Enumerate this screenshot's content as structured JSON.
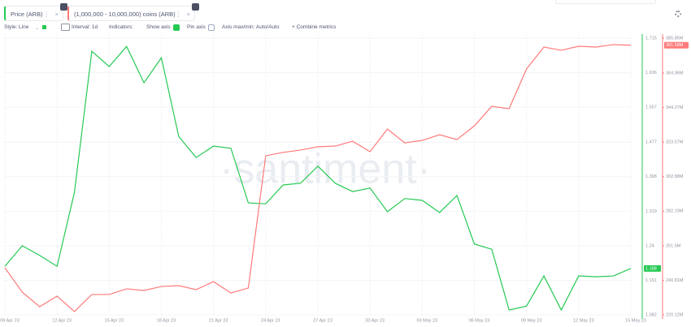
{
  "ui": {
    "toolbar": {
      "style": "Style: Line",
      "interval": "Interval: 1d",
      "indicators": "Indicators:",
      "show_axis": "Show axis",
      "pin_axis": "Pin axis",
      "axis_minmax": "Axis max/min: Auto/Auto",
      "combine": "Combine metrics"
    },
    "watermark": "·santiment·"
  },
  "chart_data": {
    "type": "line",
    "categories": [
      "09 Apr 23",
      null,
      null,
      "12 Apr 23",
      null,
      null,
      "15 Apr 23",
      null,
      null,
      "18 Apr 23",
      null,
      null,
      "21 Apr 23",
      null,
      null,
      "24 Apr 23",
      null,
      null,
      "27 Apr 23",
      null,
      null,
      "30 Apr 23",
      null,
      null,
      "03 May 23",
      null,
      null,
      "06 May 23",
      null,
      null,
      "09 May 23",
      null,
      null,
      "12 May 23",
      null,
      null,
      "15 May 23"
    ],
    "series": [
      {
        "name": "Price (ARB)",
        "color": "#26c953",
        "axis": "y",
        "values": [
          1.193,
          1.24,
          1.218,
          1.193,
          1.362,
          1.685,
          1.65,
          1.696,
          1.613,
          1.67,
          1.49,
          1.442,
          1.468,
          1.463,
          1.338,
          1.336,
          1.379,
          1.383,
          1.422,
          1.383,
          1.364,
          1.372,
          1.318,
          1.348,
          1.344,
          1.316,
          1.355,
          1.244,
          1.232,
          1.093,
          1.102,
          1.171,
          1.093,
          1.171,
          1.169,
          1.171,
          1.188
        ]
      },
      {
        "name": "(1,000,000 - 10,000,000) coins (ARB)",
        "color": "#ff7a7a",
        "axis": "y2",
        "values": [
          248300000,
          233700000,
          225000000,
          231300000,
          222100000,
          232300000,
          232300000,
          235700000,
          234700000,
          237100000,
          237600000,
          235200000,
          240000000,
          233200000,
          236200000,
          315400000,
          317400000,
          318800000,
          320800000,
          321200000,
          324100000,
          317800000,
          331400000,
          323100000,
          324600000,
          328000000,
          325100000,
          333300000,
          345000000,
          343600000,
          367400000,
          380500000,
          378600000,
          381000000,
          380500000,
          382000000,
          381580000
        ],
        "value_labels": [
          null,
          null,
          null,
          null,
          null,
          null,
          null,
          null,
          null,
          null,
          null,
          null,
          null,
          null,
          null,
          null,
          null,
          null,
          null,
          null,
          null,
          null,
          null,
          null,
          null,
          null,
          null,
          null,
          null,
          null,
          null,
          null,
          null,
          null,
          null,
          null,
          "381.58M"
        ]
      }
    ],
    "ylim": [
      1.082,
      1.715
    ],
    "yticks": [
      1.082,
      1.161,
      1.24,
      1.319,
      1.398,
      1.477,
      1.557,
      1.636,
      1.715
    ],
    "y2lim": [
      220120000,
      385850000
    ],
    "y2ticks": [
      {
        "value": 220120000,
        "label": "220.12M"
      },
      {
        "value": 240810000,
        "label": "240.81M"
      },
      {
        "value": 261500000,
        "label": "261.5M"
      },
      {
        "value": 282190000,
        "label": "282.19M"
      },
      {
        "value": 302880000,
        "label": "302.88M"
      },
      {
        "value": 323570000,
        "label": "323.57M"
      },
      {
        "value": 344270000,
        "label": "344.27M"
      },
      {
        "value": 364960000,
        "label": "364.96M"
      },
      {
        "value": 385850000,
        "label": "385.85M"
      }
    ],
    "grid": true
  }
}
